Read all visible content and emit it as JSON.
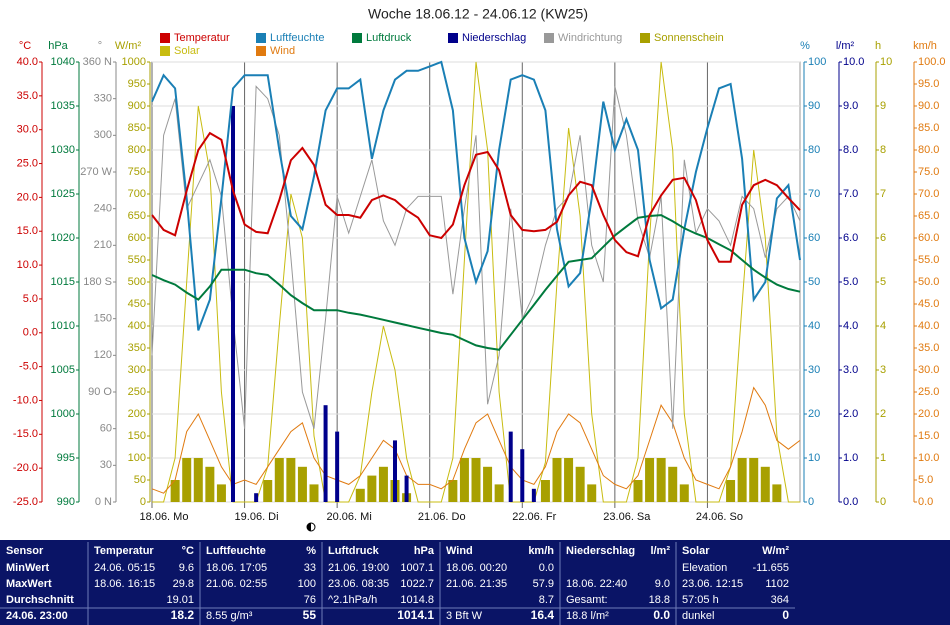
{
  "chart_data": {
    "type": "multi-axis",
    "title": "Woche 18.06.12 - 24.06.12 (KW25)",
    "xlim": [
      0,
      168
    ],
    "xticks": [
      {
        "value": 0,
        "label": "18.06. Mo"
      },
      {
        "value": 24,
        "label": "19.06. Di"
      },
      {
        "value": 48,
        "label": "20.06. Mi"
      },
      {
        "value": 72,
        "label": "21.06. Do"
      },
      {
        "value": 96,
        "label": "22.06. Fr"
      },
      {
        "value": 120,
        "label": "23.06. Sa"
      },
      {
        "value": 144,
        "label": "24.06. So"
      }
    ],
    "x": [
      0,
      3,
      6,
      9,
      12,
      15,
      18,
      21,
      24,
      27,
      30,
      33,
      36,
      39,
      42,
      45,
      48,
      51,
      54,
      57,
      60,
      63,
      66,
      69,
      72,
      75,
      78,
      81,
      84,
      87,
      90,
      93,
      96,
      99,
      102,
      105,
      108,
      111,
      114,
      117,
      120,
      123,
      126,
      129,
      132,
      135,
      138,
      141,
      144,
      147,
      150,
      153,
      156,
      159,
      162,
      165,
      168
    ],
    "axes": {
      "temp": {
        "unit": "°C",
        "color": "#cc0000",
        "side": "left",
        "lim": [
          -25,
          40
        ],
        "ticks": [
          {
            "value": 40,
            "label": "40.0"
          },
          {
            "value": 35,
            "label": "35.0"
          },
          {
            "value": 30,
            "label": "30.0"
          },
          {
            "value": 25,
            "label": "25.0"
          },
          {
            "value": 20,
            "label": "20.0"
          },
          {
            "value": 15,
            "label": "15.0"
          },
          {
            "value": 10,
            "label": "10.0"
          },
          {
            "value": 5,
            "label": "5.0"
          },
          {
            "value": 0,
            "label": "0.0"
          },
          {
            "value": -5,
            "label": "-5.0"
          },
          {
            "value": -10,
            "label": "-10.0"
          },
          {
            "value": -15,
            "label": "-15.0"
          },
          {
            "value": -20,
            "label": "-20.0"
          },
          {
            "value": -25,
            "label": "-25.0"
          }
        ]
      },
      "press": {
        "unit": "hPa",
        "color": "#007a3d",
        "side": "left",
        "lim": [
          990,
          1040
        ],
        "ticks": [
          1040,
          1035,
          1030,
          1025,
          1020,
          1015,
          1010,
          1005,
          1000,
          995,
          990
        ]
      },
      "dir": {
        "unit": "°",
        "color": "#888888",
        "side": "left",
        "lim": [
          0,
          360
        ],
        "ticks": [
          {
            "value": 360,
            "label": "360 N"
          },
          330,
          300,
          {
            "value": 270,
            "label": "270 W"
          },
          240,
          210,
          {
            "value": 180,
            "label": "180 S"
          },
          150,
          120,
          {
            "value": 90,
            "label": "90 O"
          },
          60,
          30,
          {
            "value": 0,
            "label": "0 N"
          }
        ]
      },
      "solar": {
        "unit": "W/m²",
        "color": "#a8a000",
        "side": "left",
        "lim": [
          0,
          1000
        ],
        "ticks": [
          1000,
          950,
          900,
          850,
          800,
          750,
          700,
          650,
          600,
          550,
          500,
          450,
          400,
          350,
          300,
          250,
          200,
          150,
          100,
          50,
          0
        ]
      },
      "hum": {
        "unit": "%",
        "color": "#1a7fb5",
        "side": "right",
        "lim": [
          0,
          100
        ],
        "ticks": [
          100,
          90,
          80,
          70,
          60,
          50,
          40,
          30,
          20,
          10,
          0
        ]
      },
      "rain": {
        "unit": "l/m²",
        "color": "#00008b",
        "side": "right",
        "lim": [
          0,
          10
        ],
        "ticks": [
          {
            "value": 10,
            "label": "10.0"
          },
          {
            "value": 9,
            "label": "9.0"
          },
          {
            "value": 8,
            "label": "8.0"
          },
          {
            "value": 7,
            "label": "7.0"
          },
          {
            "value": 6,
            "label": "6.0"
          },
          {
            "value": 5,
            "label": "5.0"
          },
          {
            "value": 4,
            "label": "4.0"
          },
          {
            "value": 3,
            "label": "3.0"
          },
          {
            "value": 2,
            "label": "2.0"
          },
          {
            "value": 1,
            "label": "1.0"
          },
          {
            "value": 0,
            "label": "0.0"
          }
        ]
      },
      "sun": {
        "unit": "h",
        "color": "#a8a000",
        "side": "right",
        "lim": [
          0,
          10
        ],
        "ticks": [
          10,
          9,
          8,
          7,
          6,
          5,
          4,
          3,
          2,
          1,
          0
        ]
      },
      "wind": {
        "unit": "km/h",
        "color": "#e07a10",
        "side": "right",
        "lim": [
          0,
          100
        ],
        "ticks": [
          {
            "value": 100,
            "label": "100.0"
          },
          {
            "value": 95,
            "label": "95.0"
          },
          {
            "value": 90,
            "label": "90.0"
          },
          {
            "value": 85,
            "label": "85.0"
          },
          {
            "value": 80,
            "label": "80.0"
          },
          {
            "value": 75,
            "label": "75.0"
          },
          {
            "value": 70,
            "label": "70.0"
          },
          {
            "value": 65,
            "label": "65.0"
          },
          {
            "value": 60,
            "label": "60.0"
          },
          {
            "value": 55,
            "label": "55.0"
          },
          {
            "value": 50,
            "label": "50.0"
          },
          {
            "value": 45,
            "label": "45.0"
          },
          {
            "value": 40,
            "label": "40.0"
          },
          {
            "value": 35,
            "label": "35.0"
          },
          {
            "value": 30,
            "label": "30.0"
          },
          {
            "value": 25,
            "label": "25.0"
          },
          {
            "value": 20,
            "label": "20.0"
          },
          {
            "value": 15,
            "label": "15.0"
          },
          {
            "value": 10,
            "label": "10.0"
          },
          {
            "value": 5,
            "label": "5.0"
          },
          {
            "value": 0,
            "label": "0.0"
          }
        ]
      }
    },
    "series": [
      {
        "name": "Temperatur",
        "color": "#cc0000",
        "axis": "temp",
        "kind": "line",
        "values": [
          17.4,
          15.2,
          14.4,
          21,
          27,
          29.5,
          28.5,
          21,
          16,
          14.9,
          14.7,
          19.6,
          25.5,
          27.3,
          24.8,
          18.9,
          17.4,
          17.4,
          17,
          19.6,
          20.3,
          19.6,
          18.1,
          17,
          14.4,
          14,
          16,
          21.8,
          26.3,
          26.7,
          24,
          17.4,
          15.2,
          15,
          15.2,
          16.4,
          20.3,
          22.3,
          21.8,
          17.4,
          13.7,
          11.9,
          11.3,
          17.4,
          20.3,
          22.6,
          22.9,
          19.6,
          13.7,
          10.5,
          10.5,
          18.9,
          21.8,
          22.6,
          21.8,
          19.9,
          18.1
        ]
      },
      {
        "name": "Luftfeuchte",
        "color": "#1a7fb5",
        "axis": "hum",
        "kind": "line",
        "values": [
          91,
          97,
          94,
          69,
          39,
          46,
          69,
          94,
          97,
          97,
          97,
          80,
          65,
          62,
          74,
          89,
          94,
          94,
          96,
          78,
          89,
          96,
          98,
          98,
          99,
          100,
          89,
          60,
          50,
          57,
          80,
          96,
          97,
          96,
          89,
          62,
          49,
          52,
          69,
          91,
          80,
          87,
          80,
          55,
          44,
          46,
          62,
          75,
          85,
          94,
          95,
          78,
          46,
          50,
          69,
          72,
          55
        ]
      },
      {
        "name": "Luftdruck",
        "color": "#007a3d",
        "axis": "press",
        "kind": "line",
        "values": [
          1015.8,
          1015.2,
          1014.7,
          1013.8,
          1013,
          1014.5,
          1016.4,
          1016.4,
          1016.4,
          1016,
          1015.8,
          1014.7,
          1013.5,
          1012.6,
          1011.8,
          1011.8,
          1011.8,
          1011.5,
          1011.3,
          1011,
          1010.7,
          1010.4,
          1010.1,
          1009.8,
          1009.5,
          1009.2,
          1009,
          1008.4,
          1007.8,
          1007.5,
          1007.3,
          1009,
          1010.7,
          1012.4,
          1014.1,
          1015.7,
          1017.3,
          1017.5,
          1017.7,
          1019,
          1020.3,
          1021.3,
          1022.3,
          1022.5,
          1022.6,
          1021.9,
          1021.1,
          1020.5,
          1020,
          1019.3,
          1018.6,
          1017.5,
          1016.4,
          1015.5,
          1014.7,
          1014.2,
          1013.9
        ]
      },
      {
        "name": "Niederschlag",
        "color": "#00008b",
        "axis": "rain",
        "kind": "bar",
        "values": [
          0,
          0,
          0,
          0,
          0,
          0,
          0,
          9.0,
          0,
          0.2,
          0,
          0,
          0,
          0,
          0,
          2.2,
          1.6,
          0,
          0,
          0,
          0,
          1.4,
          0.6,
          0,
          0,
          0,
          0,
          0,
          0,
          0,
          0,
          1.6,
          1.2,
          0.3,
          0,
          0,
          0,
          0,
          0,
          0,
          0,
          0,
          0,
          0,
          0,
          0,
          0,
          0,
          0,
          0,
          0,
          0,
          0,
          0,
          0,
          0,
          0
        ]
      },
      {
        "name": "Windrichtung",
        "color": "#999999",
        "axis": "dir",
        "kind": "line",
        "values": [
          120,
          300,
          330,
          240,
          260,
          280,
          250,
          150,
          60,
          340,
          330,
          300,
          200,
          90,
          60,
          150,
          250,
          220,
          250,
          280,
          230,
          210,
          240,
          250,
          250,
          250,
          170,
          240,
          300,
          80,
          120,
          240,
          150,
          170,
          210,
          240,
          250,
          300,
          210,
          180,
          340,
          300,
          230,
          200,
          250,
          60,
          280,
          220,
          240,
          230,
          210,
          250,
          240,
          200,
          240,
          250,
          230
        ]
      },
      {
        "name": "Sonnenschein",
        "color": "#a8a000",
        "axis": "sun",
        "kind": "bar",
        "values": [
          0,
          0,
          0.5,
          1,
          1,
          0.8,
          0.4,
          0,
          0,
          0,
          0.5,
          1,
          1,
          0.8,
          0.4,
          0,
          0,
          0,
          0.3,
          0.6,
          0.8,
          0.5,
          0.2,
          0,
          0,
          0,
          0.5,
          1,
          1,
          0.8,
          0.4,
          0,
          0,
          0,
          0.5,
          1,
          1,
          0.8,
          0.4,
          0,
          0,
          0,
          0.5,
          1,
          1,
          0.8,
          0.4,
          0,
          0,
          0,
          0.5,
          1,
          1,
          0.8,
          0.4,
          0,
          0
        ]
      },
      {
        "name": "Solar",
        "color": "#c8bc10",
        "axis": "solar",
        "kind": "line",
        "values": [
          0,
          0,
          100,
          500,
          900,
          750,
          250,
          0,
          0,
          0,
          80,
          400,
          700,
          600,
          150,
          0,
          0,
          0,
          60,
          250,
          400,
          300,
          100,
          0,
          0,
          0,
          100,
          550,
          1000,
          800,
          250,
          0,
          0,
          0,
          90,
          500,
          850,
          650,
          200,
          0,
          0,
          0,
          100,
          600,
          1000,
          800,
          200,
          0,
          0,
          0,
          80,
          450,
          800,
          600,
          150,
          0,
          0
        ]
      },
      {
        "name": "Wind",
        "color": "#e07a10",
        "axis": "wind",
        "kind": "line",
        "values": [
          3,
          2,
          5,
          16,
          20,
          14,
          8,
          4,
          5,
          4,
          8,
          12,
          16,
          18,
          10,
          6,
          5,
          4,
          6,
          10,
          14,
          12,
          6,
          4,
          4,
          3,
          5,
          12,
          18,
          20,
          14,
          8,
          5,
          4,
          8,
          16,
          20,
          18,
          12,
          6,
          4,
          3,
          6,
          14,
          22,
          18,
          10,
          5,
          4,
          3,
          8,
          16,
          26,
          22,
          14,
          12,
          14
        ]
      }
    ]
  },
  "stats": {
    "columns": [
      {
        "title": "Sensor",
        "rows": [
          [
            "MinWert"
          ],
          [
            "MaxWert"
          ],
          [
            "Durchschnitt"
          ]
        ],
        "current": [
          "24.06. 23:00"
        ]
      },
      {
        "title": "Temperatur",
        "unit": "°C",
        "rows": [
          [
            "24.06. 05:15",
            "9.6"
          ],
          [
            "18.06. 16:15",
            "29.8"
          ],
          [
            "19.01"
          ]
        ],
        "current": [
          "18.2"
        ]
      },
      {
        "title": "Luftfeuchte",
        "unit": "%",
        "rows": [
          [
            "18.06. 17:05",
            "33"
          ],
          [
            "21.06. 02:55",
            "100"
          ],
          [
            "76"
          ]
        ],
        "current": [
          "8.55 g/m³",
          "55"
        ]
      },
      {
        "title": "Luftdruck",
        "unit": "hPa",
        "rows": [
          [
            "21.06. 19:00",
            "1007.1"
          ],
          [
            "23.06. 08:35",
            "1022.7"
          ],
          [
            "^2.1hPa/h",
            "1014.8"
          ]
        ],
        "current": [
          "1014.1"
        ]
      },
      {
        "title": "Wind",
        "unit": "km/h",
        "rows": [
          [
            "18.06. 00:20",
            "0.0"
          ],
          [
            "21.06. 21:35",
            "57.9"
          ],
          [
            "8.7"
          ]
        ],
        "current": [
          "3 Bft W",
          "16.4"
        ]
      },
      {
        "title": "Niederschlag",
        "unit": "l/m²",
        "rows": [
          null,
          [
            "18.06. 22:40",
            "9.0"
          ],
          [
            "Gesamt:",
            "18.8"
          ]
        ],
        "current": [
          "18.8 l/m²",
          "0.0"
        ]
      },
      {
        "title": "Solar",
        "unit": "W/m²",
        "rows": [
          [
            "Elevation",
            "-11.655"
          ],
          [
            "23.06. 12:15",
            "1102"
          ],
          [
            "57:05 h",
            "364"
          ]
        ],
        "current": [
          "dunkel",
          "0"
        ]
      }
    ]
  }
}
